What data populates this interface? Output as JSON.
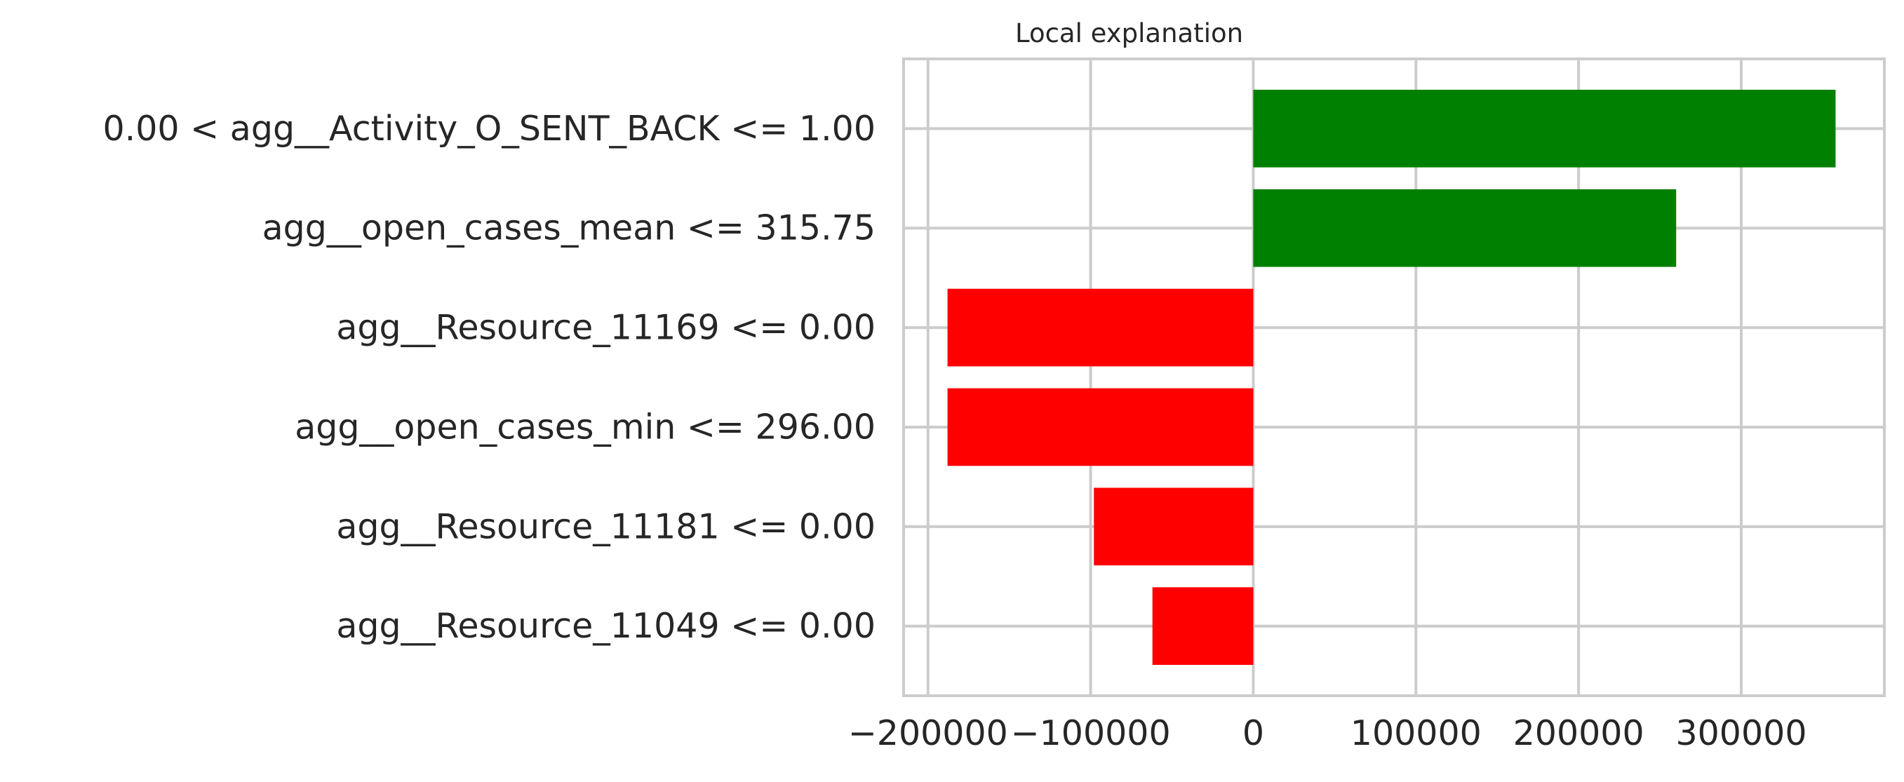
{
  "chart_data": {
    "type": "bar",
    "orientation": "horizontal",
    "title": "Local explanation",
    "xlabel": "",
    "ylabel": "",
    "categories": [
      "0.00 < agg__Activity_O_SENT_BACK <= 1.00",
      "agg__open_cases_mean <= 315.75",
      "agg__Resource_11169 <= 0.00",
      "agg__open_cases_min <= 296.00",
      "agg__Resource_11181 <= 0.00",
      "agg__Resource_11049 <= 0.00"
    ],
    "values": [
      358000,
      260000,
      -188000,
      -188000,
      -98000,
      -62000
    ],
    "xlim": [
      -215000,
      388000
    ],
    "xticks": [
      -200000,
      -100000,
      0,
      100000,
      200000,
      300000
    ],
    "xtick_labels": [
      "−200000",
      "−100000",
      "0",
      "100000",
      "200000",
      "300000"
    ],
    "grid": true,
    "colors": {
      "positive": "#008000",
      "negative": "#ff0000",
      "grid": "#cccccc",
      "text": "#262626"
    }
  }
}
